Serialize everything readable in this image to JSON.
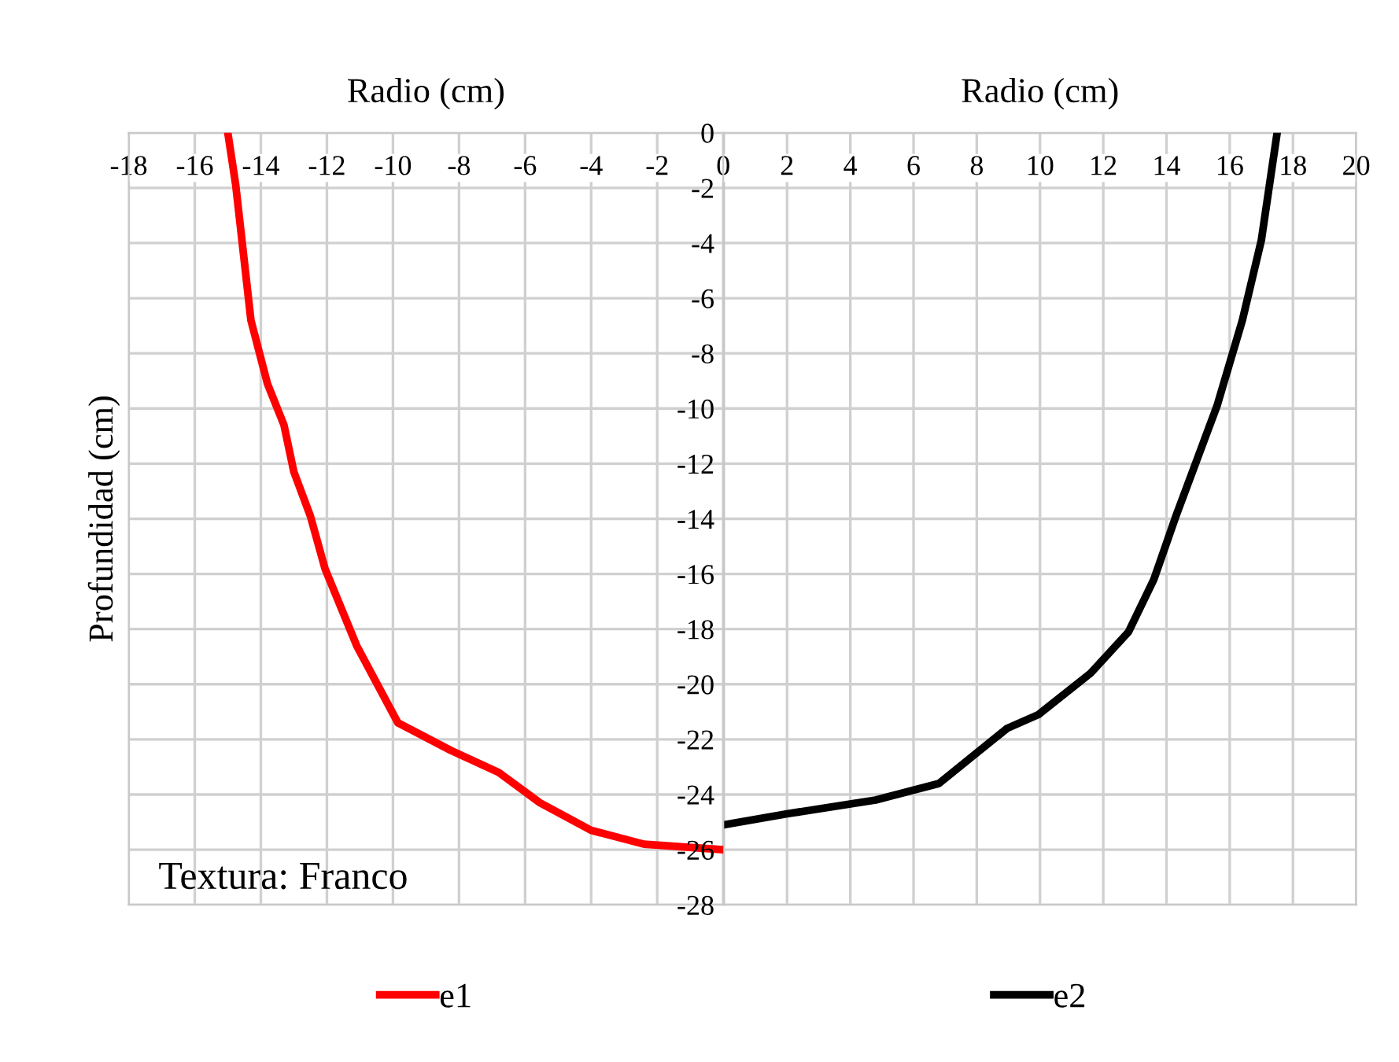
{
  "chart_data": [
    {
      "type": "line",
      "xlabel": "Radio (cm)",
      "ylabel": "Profundidad (cm)",
      "annotations": [
        "Textura: Franco"
      ],
      "xlim": [
        -18,
        0
      ],
      "xticks": [
        -18,
        -16,
        -14,
        -12,
        -10,
        -8,
        -6,
        -4,
        -2,
        0
      ],
      "ylim": [
        -28,
        0
      ],
      "yticks": [
        0,
        -2,
        -4,
        -6,
        -8,
        -10,
        -12,
        -14,
        -16,
        -18,
        -20,
        -22,
        -24,
        -26,
        -28
      ],
      "grid": true,
      "legend": "bottom",
      "series": [
        {
          "name": "e1",
          "color": "#ff0000",
          "x": [
            -15.0,
            -14.76,
            -14.3,
            -13.8,
            -13.3,
            -13.0,
            -12.5,
            -12.06,
            -11.1,
            -9.85,
            -8.25,
            -6.8,
            -5.55,
            -4.0,
            -2.4,
            0.0
          ],
          "values": [
            0,
            -1.9,
            -6.8,
            -9.1,
            -10.6,
            -12.3,
            -13.9,
            -15.8,
            -18.6,
            -21.4,
            -22.4,
            -23.2,
            -24.3,
            -25.3,
            -25.8,
            -26.0
          ]
        }
      ]
    },
    {
      "type": "line",
      "xlabel": "Radio (cm)",
      "tick_labels": "x",
      "xlim": [
        0,
        20
      ],
      "xticks": [
        {
          "value": 0,
          "label": null
        },
        2,
        4,
        6,
        8,
        10,
        12,
        14,
        16,
        18,
        20
      ],
      "ylim": [
        -28,
        0
      ],
      "yticks": [
        0,
        -2,
        -4,
        -6,
        -8,
        -10,
        -12,
        -14,
        -16,
        -18,
        -20,
        -22,
        -24,
        -26,
        -28
      ],
      "grid": true,
      "legend": "bottom",
      "series": [
        {
          "name": "e2",
          "color": "#000000",
          "x": [
            0.0,
            2.0,
            4.8,
            6.8,
            8.96,
            9.95,
            11.6,
            12.8,
            13.6,
            14.3,
            15.6,
            16.4,
            17.0,
            17.5
          ],
          "values": [
            -25.1,
            -24.7,
            -24.2,
            -23.6,
            -21.6,
            -21.1,
            -19.6,
            -18.1,
            -16.2,
            -13.9,
            -9.9,
            -6.8,
            -3.9,
            0
          ]
        }
      ]
    }
  ]
}
